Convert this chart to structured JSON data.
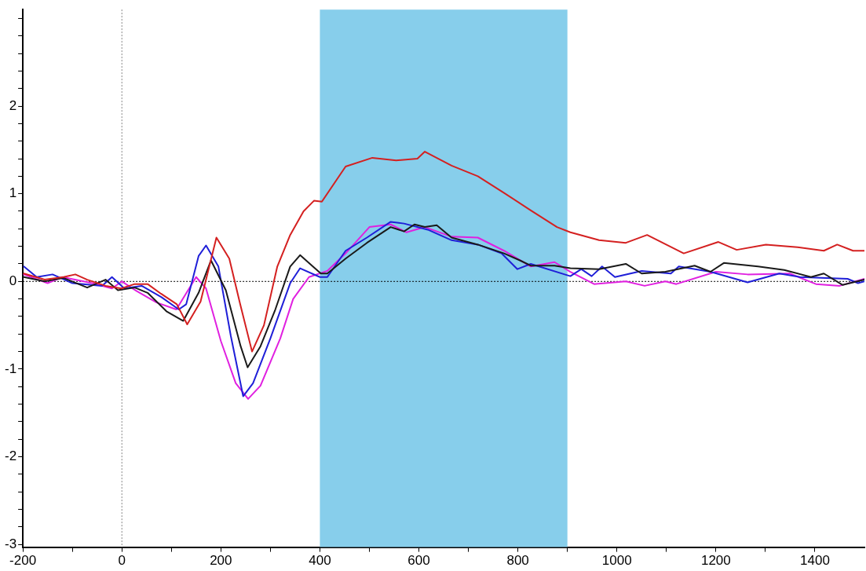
{
  "chart_data": {
    "type": "line",
    "xlim": [
      -200,
      1500
    ],
    "ylim": [
      -3.03,
      3.1
    ],
    "xticks": [
      -200,
      {
        "value": -100,
        "label": null
      },
      0,
      {
        "value": 100,
        "label": null
      },
      200,
      {
        "value": 300,
        "label": null
      },
      400,
      {
        "value": 500,
        "label": null
      },
      600,
      {
        "value": 700,
        "label": null
      },
      800,
      {
        "value": 900,
        "label": null
      },
      1000,
      {
        "value": 1100,
        "label": null
      },
      1200,
      {
        "value": 1300,
        "label": null
      },
      1400
    ],
    "yticks": [
      -3,
      {
        "value": -2.8,
        "label": null
      },
      {
        "value": -2.6,
        "label": null
      },
      {
        "value": -2.4,
        "label": null
      },
      {
        "value": -2.2,
        "label": null
      },
      -2,
      {
        "value": -1.8,
        "label": null
      },
      {
        "value": -1.6,
        "label": null
      },
      {
        "value": -1.4,
        "label": null
      },
      {
        "value": -1.2,
        "label": null
      },
      -1,
      {
        "value": -0.8,
        "label": null
      },
      {
        "value": -0.6,
        "label": null
      },
      {
        "value": -0.4,
        "label": null
      },
      {
        "value": -0.2,
        "label": null
      },
      0,
      {
        "value": 0.2,
        "label": null
      },
      {
        "value": 0.4,
        "label": null
      },
      {
        "value": 0.6,
        "label": null
      },
      {
        "value": 0.8,
        "label": null
      },
      1,
      {
        "value": 1.2,
        "label": null
      },
      {
        "value": 1.4,
        "label": null
      },
      {
        "value": 1.6,
        "label": null
      },
      {
        "value": 1.8,
        "label": null
      },
      2,
      {
        "value": 2.2,
        "label": null
      },
      {
        "value": 2.4,
        "label": null
      },
      {
        "value": 2.6,
        "label": null
      },
      {
        "value": 2.8,
        "label": null
      },
      {
        "value": 3,
        "label": null
      }
    ],
    "grid": false,
    "legend": false,
    "marker": "none",
    "line_style": "solid",
    "bands": [
      {
        "axis": "x",
        "from": 400,
        "to": 900,
        "color": "#87ceeb"
      }
    ],
    "ref_lines": [
      {
        "axis": "x",
        "value": 0,
        "color": "#808080",
        "line_style": "dotted"
      },
      {
        "axis": "y",
        "value": 0,
        "color": "#000000",
        "line_style": "dotted"
      }
    ],
    "series": [
      {
        "color": "#d42020",
        "x": [
          -198,
          -156,
          -118,
          -94,
          -70,
          -33,
          -1,
          26,
          52,
          79,
          111,
          132,
          159,
          191,
          217,
          239,
          263,
          287,
          314,
          340,
          367,
          388,
          404,
          452,
          506,
          554,
          597,
          612,
          666,
          719,
          772,
          826,
          879,
          906,
          964,
          1018,
          1061,
          1135,
          1205,
          1242,
          1301,
          1365,
          1418,
          1445,
          1477,
          1500
        ],
        "values": [
          0.09,
          0.02,
          0.05,
          0.08,
          0.02,
          -0.05,
          -0.08,
          -0.03,
          -0.03,
          -0.14,
          -0.26,
          -0.49,
          -0.23,
          0.5,
          0.26,
          -0.26,
          -0.8,
          -0.5,
          0.17,
          0.53,
          0.8,
          0.92,
          0.91,
          1.31,
          1.41,
          1.38,
          1.4,
          1.48,
          1.32,
          1.2,
          1.01,
          0.81,
          0.62,
          0.56,
          0.47,
          0.44,
          0.53,
          0.32,
          0.45,
          0.36,
          0.42,
          0.39,
          0.35,
          0.42,
          0.35,
          0.35
        ]
      },
      {
        "color": "#1a1a1a",
        "x": [
          -198,
          -156,
          -118,
          -70,
          -33,
          -8,
          26,
          52,
          90,
          124,
          155,
          180,
          210,
          240,
          254,
          280,
          310,
          340,
          360,
          380,
          402,
          415,
          452,
          495,
          543,
          570,
          591,
          612,
          636,
          666,
          719,
          772,
          804,
          826,
          874,
          906,
          964,
          1018,
          1050,
          1098,
          1157,
          1189,
          1216,
          1285,
          1338,
          1392,
          1418,
          1456,
          1500
        ],
        "values": [
          0.05,
          0,
          0.04,
          -0.07,
          0.02,
          -0.1,
          -0.07,
          -0.13,
          -0.34,
          -0.45,
          -0.13,
          0.24,
          -0.1,
          -0.74,
          -0.98,
          -0.74,
          -0.32,
          0.17,
          0.3,
          0.2,
          0.09,
          0.09,
          0.26,
          0.44,
          0.62,
          0.57,
          0.65,
          0.62,
          0.64,
          0.5,
          0.42,
          0.32,
          0.24,
          0.18,
          0.18,
          0.15,
          0.14,
          0.2,
          0.09,
          0.11,
          0.18,
          0.11,
          0.21,
          0.17,
          0.13,
          0.05,
          0.09,
          -0.04,
          0.02
        ]
      },
      {
        "color": "#1f1fd8",
        "x": [
          -198,
          -172,
          -140,
          -100,
          -40,
          -20,
          5,
          40,
          80,
          115,
          130,
          155,
          170,
          195,
          220,
          245,
          265,
          300,
          340,
          360,
          400,
          415,
          452,
          495,
          543,
          570,
          618,
          666,
          719,
          767,
          799,
          826,
          906,
          928,
          949,
          970,
          996,
          1050,
          1109,
          1125,
          1189,
          1264,
          1328,
          1370,
          1466,
          1487,
          1500
        ],
        "values": [
          0.17,
          0.05,
          0.08,
          -0.02,
          -0.05,
          0.05,
          -0.08,
          -0.05,
          -0.18,
          -0.32,
          -0.26,
          0.29,
          0.41,
          0.17,
          -0.62,
          -1.31,
          -1.16,
          -0.65,
          -0.02,
          0.15,
          0.05,
          0.05,
          0.35,
          0.5,
          0.68,
          0.66,
          0.59,
          0.47,
          0.42,
          0.32,
          0.14,
          0.2,
          0.06,
          0.14,
          0.06,
          0.17,
          0.05,
          0.12,
          0.09,
          0.17,
          0.11,
          -0.01,
          0.09,
          0.05,
          0.03,
          -0.02,
          0
        ]
      },
      {
        "color": "#e020e0",
        "x": [
          -198,
          -150,
          -120,
          -60,
          -20,
          0,
          30,
          70,
          110,
          150,
          170,
          200,
          230,
          255,
          280,
          320,
          346,
          378,
          415,
          452,
          500,
          543,
          575,
          612,
          666,
          719,
          772,
          826,
          874,
          906,
          954,
          1018,
          1056,
          1098,
          1120,
          1200,
          1264,
          1349,
          1402,
          1450,
          1500
        ],
        "values": [
          0.08,
          -0.02,
          0.05,
          -0.02,
          -0.08,
          0,
          -0.11,
          -0.24,
          -0.32,
          0.05,
          -0.08,
          -0.68,
          -1.16,
          -1.34,
          -1.19,
          -0.65,
          -0.2,
          0.05,
          0.12,
          0.32,
          0.62,
          0.65,
          0.56,
          0.62,
          0.51,
          0.5,
          0.35,
          0.17,
          0.22,
          0.11,
          -0.03,
          0,
          -0.05,
          0,
          -0.03,
          0.11,
          0.08,
          0.09,
          -0.03,
          -0.05,
          0.03
        ]
      }
    ]
  }
}
